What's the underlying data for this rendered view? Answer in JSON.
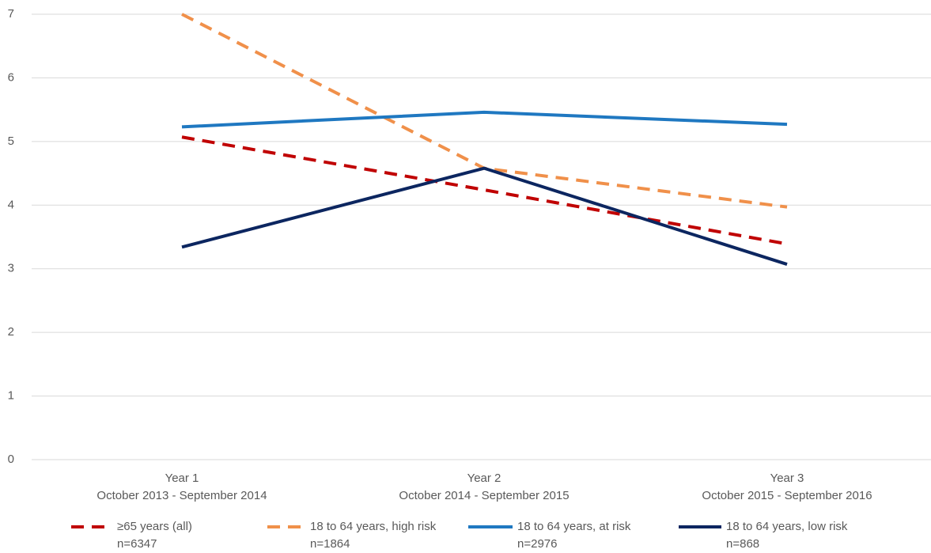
{
  "chart_data": {
    "type": "line",
    "categories": [
      [
        "Year 1",
        "October 2013 - September 2014"
      ],
      [
        "Year 2",
        "October 2014 - September 2015"
      ],
      [
        "Year 3",
        "October 2015 - September 2016"
      ]
    ],
    "series": [
      {
        "name": "≥65 years (all)",
        "note": "n=6347",
        "color": "#c00000",
        "style": "dashed",
        "values": [
          5.07,
          4.24,
          3.39
        ]
      },
      {
        "name": "18 to 64 years, high risk",
        "note": "n=1864",
        "color": "#f0904a",
        "style": "dashed",
        "values": [
          7.0,
          4.58,
          3.97
        ]
      },
      {
        "name": "18 to 64 years, at risk",
        "note": "n=2976",
        "color": "#1f78c1",
        "style": "solid",
        "values": [
          5.23,
          5.46,
          5.27
        ]
      },
      {
        "name": "18 to 64 years, low risk",
        "note": "n=868",
        "color": "#0c2660",
        "style": "solid",
        "values": [
          3.34,
          4.58,
          3.07
        ]
      }
    ],
    "ylim": [
      0,
      7
    ],
    "yticks": [
      0,
      1,
      2,
      3,
      4,
      5,
      6,
      7
    ],
    "grid": true,
    "legend": "bottom"
  }
}
